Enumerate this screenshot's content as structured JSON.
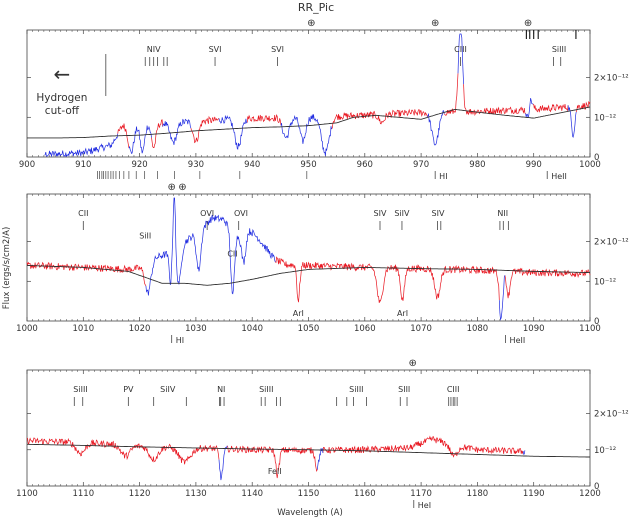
{
  "chart_data": {
    "type": "line",
    "title": "RR_Pic",
    "xlabel": "Wavelength (A)",
    "ylabel": "Flux (ergs/s/cm2/A)",
    "colors": {
      "data_red": "#e8141e",
      "data_blue": "#1f2be0",
      "model": "#333333",
      "frame": "#444444"
    },
    "panels": [
      {
        "xlim": [
          900,
          1000
        ],
        "ylim": [
          0,
          3.2e-12
        ],
        "x_ticks": [
          "900",
          "910",
          "920",
          "930",
          "940",
          "950",
          "960",
          "970",
          "980",
          "990",
          "1000"
        ],
        "y_ticks": [
          {
            "value": 1e-12,
            "label": "10⁻¹²"
          },
          {
            "value": 2e-12,
            "label": "2×10⁻¹²"
          }
        ],
        "y_zero_label": "0",
        "line_ids_top": [
          {
            "label": "NIV",
            "x": 922.5,
            "ticks": [
              921.0,
              921.8,
              922.5,
              923.2,
              924.3,
              924.9
            ]
          },
          {
            "label": "SVI",
            "x": 933.4,
            "ticks": [
              933.4
            ]
          },
          {
            "label": "SVI",
            "x": 944.5,
            "ticks": [
              944.5
            ]
          },
          {
            "label": "CIII",
            "x": 977.0,
            "ticks": [
              977.0
            ]
          },
          {
            "label": "SiIII",
            "x": 994.5,
            "ticks": [
              993.5,
              994.8
            ]
          }
        ],
        "earth_symbols": [
          {
            "label": "⊕",
            "x": 950.5
          },
          {
            "label": "⊕",
            "x": 972.5
          },
          {
            "label": "⊕",
            "x": 989.0
          }
        ],
        "earth_ticks": [
          988.7,
          989.3,
          990.0,
          990.8,
          997.5
        ],
        "line_ids_bottom": [
          {
            "label": "HI",
            "x": 972.5,
            "ticks": [
              972.5
            ]
          },
          {
            "label": "HeII",
            "x": 992.4,
            "ticks": [
              992.4
            ]
          }
        ],
        "lyman_ticks": [
          912.5,
          912.9,
          913.3,
          913.6,
          914.0,
          914.4,
          914.9,
          915.3,
          915.8,
          916.4,
          917.2,
          918.1,
          919.4,
          920.9,
          923.2,
          926.2,
          930.7,
          937.8,
          949.7
        ],
        "annotation": {
          "arrow": "←",
          "lines": [
            "Hydrogen",
            "cut-off"
          ]
        },
        "model": [
          [
            900,
            0.48
          ],
          [
            905,
            0.48
          ],
          [
            910,
            0.49
          ],
          [
            915,
            0.53
          ],
          [
            920,
            0.55
          ],
          [
            925,
            0.6
          ],
          [
            930,
            0.66
          ],
          [
            935,
            0.7
          ],
          [
            940,
            0.74
          ],
          [
            945,
            0.76
          ],
          [
            950,
            0.79
          ],
          [
            955,
            0.86
          ],
          [
            958,
            1.0
          ],
          [
            962,
            1.05
          ],
          [
            966,
            1.0
          ],
          [
            970,
            0.95
          ],
          [
            973,
            1.08
          ],
          [
            976,
            1.2
          ],
          [
            980,
            1.13
          ],
          [
            985,
            1.05
          ],
          [
            990,
            0.98
          ],
          [
            995,
            1.12
          ],
          [
            1000,
            1.26
          ]
        ],
        "red_segments": [
          [
            916,
            1000
          ]
        ],
        "blue_segments": [
          [
            903,
            916
          ],
          [
            918,
            922
          ],
          [
            924,
            929
          ],
          [
            934,
            939
          ],
          [
            945,
            954
          ],
          [
            971,
            974
          ],
          [
            976.5,
            977.5
          ],
          [
            988.5,
            989.8
          ],
          [
            996,
            997.5
          ]
        ],
        "continuum": [
          [
            900,
            0.05
          ],
          [
            910,
            0.1
          ],
          [
            915,
            0.3
          ],
          [
            917,
            0.8
          ],
          [
            930,
            0.9
          ],
          [
            940,
            0.98
          ],
          [
            950,
            1.0
          ],
          [
            960,
            1.05
          ],
          [
            970,
            1.12
          ],
          [
            980,
            1.15
          ],
          [
            990,
            1.2
          ],
          [
            1000,
            1.3
          ]
        ],
        "absorptions": [
          [
            918.5,
            0.7,
            0.5
          ],
          [
            920.5,
            0.7,
            0.4
          ],
          [
            922.5,
            0.6,
            0.4
          ],
          [
            926,
            0.5,
            0.6
          ],
          [
            930,
            0.5,
            0.5
          ],
          [
            937.5,
            0.7,
            0.6
          ],
          [
            946,
            0.5,
            0.6
          ],
          [
            949,
            0.6,
            0.5
          ],
          [
            953,
            0.9,
            0.7
          ],
          [
            963,
            0.2,
            0.5
          ],
          [
            972.5,
            0.8,
            0.6
          ],
          [
            989,
            0.6,
            0.3
          ],
          [
            997,
            0.7,
            0.3
          ]
        ],
        "emissions": [
          [
            977,
            2.2,
            0.35
          ],
          [
            989.2,
            0.5,
            0.4
          ]
        ]
      },
      {
        "xlim": [
          1000,
          1100
        ],
        "ylim": [
          0,
          3.2e-12
        ],
        "x_ticks": [
          "1000",
          "1010",
          "1020",
          "1030",
          "1040",
          "1050",
          "1060",
          "1070",
          "1080",
          "1090",
          "1100"
        ],
        "y_ticks": [
          {
            "value": 1e-12,
            "label": "10⁻¹²"
          },
          {
            "value": 2e-12,
            "label": "2×10⁻¹²"
          }
        ],
        "y_zero_label": "0",
        "line_ids_top": [
          {
            "label": "CII",
            "x": 1010.0,
            "ticks": [
              1010.0
            ]
          },
          {
            "label": "OVI",
            "x": 1032.0,
            "ticks": [
              1032.0
            ]
          },
          {
            "label": "OVI",
            "x": 1038.0,
            "ticks": [
              1037.6
            ]
          },
          {
            "label": "SIV",
            "x": 1062.7,
            "ticks": [
              1062.7
            ]
          },
          {
            "label": "SiIV",
            "x": 1066.6,
            "ticks": [
              1066.6
            ]
          },
          {
            "label": "SIV",
            "x": 1073.0,
            "ticks": [
              1072.9,
              1073.5
            ]
          },
          {
            "label": "NII",
            "x": 1084.5,
            "ticks": [
              1084.0,
              1084.6,
              1085.5
            ]
          }
        ],
        "earth_symbols": [
          {
            "label": "⊕",
            "x": 1025.7
          },
          {
            "label": "⊕",
            "x": 1027.6
          }
        ],
        "inline_labels": [
          {
            "label": "SiII",
            "x": 1021.0,
            "level": 2.0
          },
          {
            "label": "CII",
            "x": 1036.5,
            "level": 1.55
          },
          {
            "label": "ArI",
            "x": 1048.2,
            "level": 0.05
          },
          {
            "label": "ArI",
            "x": 1066.7,
            "level": 0.05
          }
        ],
        "line_ids_bottom": [
          {
            "label": "HI",
            "x": 1025.7,
            "ticks": [
              1025.7
            ]
          },
          {
            "label": "HeII",
            "x": 1085.0,
            "ticks": [
              1085.0
            ]
          }
        ],
        "model": [
          [
            1000,
            1.4
          ],
          [
            1010,
            1.35
          ],
          [
            1018,
            1.25
          ],
          [
            1024,
            0.95
          ],
          [
            1028,
            0.95
          ],
          [
            1032,
            0.9
          ],
          [
            1036,
            0.95
          ],
          [
            1040,
            1.05
          ],
          [
            1045,
            1.2
          ],
          [
            1050,
            1.3
          ],
          [
            1060,
            1.35
          ],
          [
            1070,
            1.32
          ],
          [
            1080,
            1.3
          ],
          [
            1090,
            1.25
          ],
          [
            1100,
            1.22
          ]
        ],
        "red_segments": [
          [
            1000,
            1021
          ],
          [
            1044,
            1100
          ]
        ],
        "blue_segments": [
          [
            1021,
            1044
          ],
          [
            1083.8,
            1084.8
          ]
        ],
        "continuum": [
          [
            1000,
            1.4
          ],
          [
            1010,
            1.35
          ],
          [
            1018,
            1.3
          ],
          [
            1021,
            1.35
          ],
          [
            1023,
            1.6
          ],
          [
            1026,
            1.75
          ],
          [
            1029,
            2.1
          ],
          [
            1031,
            2.35
          ],
          [
            1033,
            2.6
          ],
          [
            1035,
            2.55
          ],
          [
            1037,
            2.1
          ],
          [
            1039,
            2.35
          ],
          [
            1041,
            2.1
          ],
          [
            1044,
            1.55
          ],
          [
            1046,
            1.42
          ],
          [
            1050,
            1.4
          ],
          [
            1060,
            1.35
          ],
          [
            1070,
            1.32
          ],
          [
            1080,
            1.28
          ],
          [
            1090,
            1.22
          ],
          [
            1100,
            1.2
          ]
        ],
        "absorptions": [
          [
            1021.5,
            0.7,
            0.5
          ],
          [
            1025.7,
            1.5,
            0.3
          ],
          [
            1027,
            0.9,
            0.4
          ],
          [
            1030.5,
            1.0,
            0.4
          ],
          [
            1036.5,
            1.6,
            0.3
          ],
          [
            1038.5,
            0.8,
            0.4
          ],
          [
            1048.2,
            0.9,
            0.25
          ],
          [
            1062.7,
            0.9,
            0.5
          ],
          [
            1066.7,
            0.8,
            0.35
          ],
          [
            1072.9,
            0.7,
            0.5
          ],
          [
            1084.2,
            1.2,
            0.3
          ],
          [
            1085.5,
            0.6,
            0.3
          ]
        ],
        "emissions": [
          [
            1025.9,
            1.6,
            0.25
          ],
          [
            1026.2,
            1.2,
            0.15
          ]
        ]
      },
      {
        "xlim": [
          1100,
          1200
        ],
        "ylim": [
          0,
          3.2e-12
        ],
        "x_ticks": [
          "1100",
          "1110",
          "1120",
          "1130",
          "1140",
          "1150",
          "1160",
          "1170",
          "1180",
          "1190",
          "1200"
        ],
        "y_ticks": [
          {
            "value": 1e-12,
            "label": "10⁻¹²"
          },
          {
            "value": 2e-12,
            "label": "2×10⁻¹²"
          }
        ],
        "y_zero_label": "0",
        "line_ids_top": [
          {
            "label": "SiIII",
            "x": 1109.5,
            "ticks": [
              1108.4,
              1109.9
            ]
          },
          {
            "label": "PV",
            "x": 1118.0,
            "ticks": [
              1118.0
            ]
          },
          {
            "label": "SiIV",
            "x": 1125.0,
            "ticks": [
              1122.5,
              1128.3
            ]
          },
          {
            "label": "NI",
            "x": 1134.5,
            "ticks": [
              1134.2,
              1134.4,
              1135.0
            ]
          },
          {
            "label": "SiIII",
            "x": 1142.5,
            "ticks": [
              1141.6,
              1142.3,
              1144.3,
              1145.0
            ]
          },
          {
            "label": "SiIII",
            "x": 1158.5,
            "ticks": [
              1155.0,
              1156.8,
              1158.0,
              1160.3
            ]
          },
          {
            "label": "SIII",
            "x": 1167.0,
            "ticks": [
              1166.3,
              1167.5
            ]
          },
          {
            "label": "CIII",
            "x": 1175.7,
            "ticks": [
              1174.9,
              1175.3,
              1175.7,
              1176.0,
              1176.4
            ]
          }
        ],
        "earth_symbols": [
          {
            "label": "⊕",
            "x": 1168.5
          }
        ],
        "inline_labels": [
          {
            "label": "FeII",
            "x": 1144.0,
            "level": 0.25
          }
        ],
        "line_ids_bottom": [
          {
            "label": "HeI",
            "x": 1168.7,
            "ticks": [
              1168.7
            ]
          }
        ],
        "model": [
          [
            1100,
            1.15
          ],
          [
            1110,
            1.12
          ],
          [
            1120,
            1.08
          ],
          [
            1130,
            1.05
          ],
          [
            1140,
            1.02
          ],
          [
            1150,
            1.0
          ],
          [
            1160,
            0.97
          ],
          [
            1170,
            0.92
          ],
          [
            1180,
            0.87
          ],
          [
            1190,
            0.82
          ],
          [
            1200,
            0.8
          ]
        ],
        "red_segments": [
          [
            1100,
            1188.5
          ]
        ],
        "blue_segments": [
          [
            1134,
            1135.5
          ],
          [
            1151.5,
            1152.5
          ],
          [
            1188,
            1189
          ]
        ],
        "continuum": [
          [
            1100,
            1.25
          ],
          [
            1110,
            1.2
          ],
          [
            1120,
            1.1
          ],
          [
            1130,
            1.05
          ],
          [
            1140,
            1.0
          ],
          [
            1150,
            0.98
          ],
          [
            1160,
            1.0
          ],
          [
            1168,
            1.05
          ],
          [
            1172,
            1.3
          ],
          [
            1175,
            1.15
          ],
          [
            1180,
            1.0
          ],
          [
            1188.5,
            0.95
          ]
        ],
        "absorptions": [
          [
            1109.5,
            0.3,
            0.8
          ],
          [
            1117.5,
            0.3,
            0.8
          ],
          [
            1122.5,
            0.35,
            0.8
          ],
          [
            1128,
            0.4,
            1.0
          ],
          [
            1134.5,
            0.8,
            0.3
          ],
          [
            1144.5,
            0.7,
            0.3
          ],
          [
            1151.5,
            0.5,
            0.3
          ],
          [
            1175.8,
            0.3,
            0.6
          ]
        ],
        "emissions": [],
        "cutoff": 1188.5
      }
    ]
  }
}
